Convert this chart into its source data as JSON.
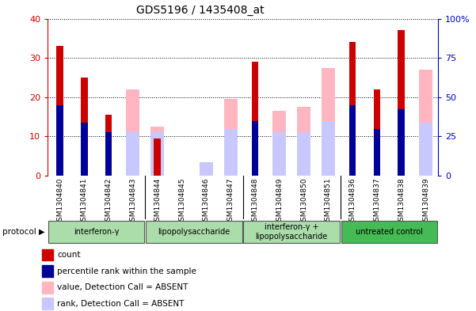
{
  "title": "GDS5196 / 1435408_at",
  "samples": [
    "GSM1304840",
    "GSM1304841",
    "GSM1304842",
    "GSM1304843",
    "GSM1304844",
    "GSM1304845",
    "GSM1304846",
    "GSM1304847",
    "GSM1304848",
    "GSM1304849",
    "GSM1304850",
    "GSM1304851",
    "GSM1304836",
    "GSM1304837",
    "GSM1304838",
    "GSM1304839"
  ],
  "count": [
    33,
    25,
    15.5,
    0,
    9.5,
    0,
    0,
    0,
    29,
    0,
    0,
    0,
    34,
    22,
    37,
    0
  ],
  "percentile": [
    18,
    13.5,
    11,
    0,
    0,
    0,
    0,
    0,
    14,
    0,
    0,
    0,
    18,
    12,
    17,
    0
  ],
  "absent_value": [
    0,
    0,
    0,
    22,
    12.5,
    0,
    3.5,
    19.5,
    0,
    16.5,
    17.5,
    27.5,
    0,
    0,
    0,
    27
  ],
  "absent_rank": [
    0,
    0,
    0,
    11,
    11,
    0,
    3.5,
    12,
    0,
    11,
    11,
    14,
    0,
    0,
    0,
    13.5
  ],
  "groups": [
    {
      "label": "interferon-γ",
      "start": 0,
      "end": 4,
      "color": "#aaddaa"
    },
    {
      "label": "lipopolysaccharide",
      "start": 4,
      "end": 8,
      "color": "#aaddaa"
    },
    {
      "label": "interferon-γ +\nlipopolysaccharide",
      "start": 8,
      "end": 12,
      "color": "#aaddaa"
    },
    {
      "label": "untreated control",
      "start": 12,
      "end": 16,
      "color": "#44bb55"
    }
  ],
  "ylim_left": [
    0,
    40
  ],
  "ylim_right": [
    0,
    100
  ],
  "yticks_left": [
    0,
    10,
    20,
    30,
    40
  ],
  "yticks_right": [
    0,
    25,
    50,
    75,
    100
  ],
  "ytick_labels_right": [
    "0",
    "25",
    "50",
    "75",
    "100%"
  ],
  "count_color": "#cc0000",
  "percentile_color": "#000099",
  "absent_value_color": "#ffb6c1",
  "absent_rank_color": "#c8c8ff",
  "bg_color": "#ffffff",
  "grid_color": "#000000",
  "protocol_label": "protocol",
  "legend_items": [
    {
      "label": "count",
      "color": "#cc0000"
    },
    {
      "label": "percentile rank within the sample",
      "color": "#000099"
    },
    {
      "label": "value, Detection Call = ABSENT",
      "color": "#ffb6c1"
    },
    {
      "label": "rank, Detection Call = ABSENT",
      "color": "#c8c8ff"
    }
  ]
}
